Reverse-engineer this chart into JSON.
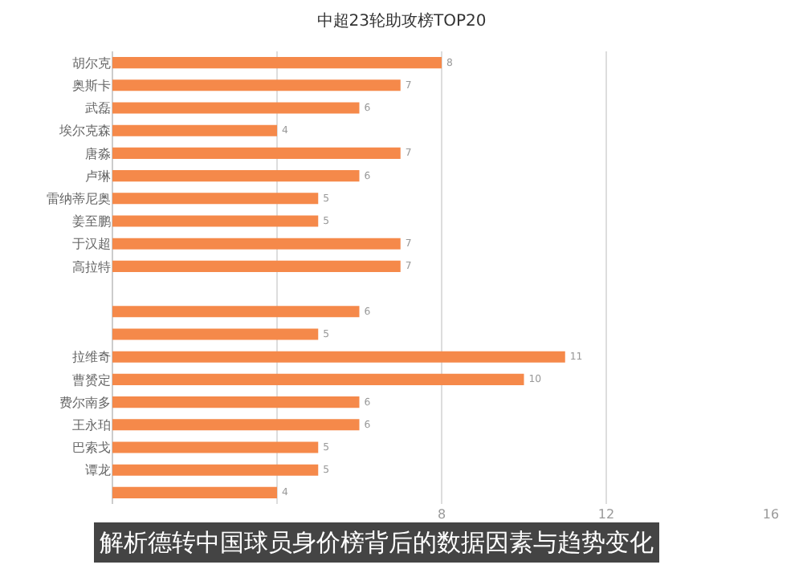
{
  "chart_data": {
    "type": "bar",
    "orientation": "horizontal",
    "title": "中超23轮助攻榜TOP20",
    "annotations": [
      "解析德转中国球员身价榜背后的数据因素与趋势变化"
    ],
    "categories": [
      "胡尔克",
      "奥斯卡",
      "武磊",
      "埃尔克森",
      "唐淼",
      "卢琳",
      "雷纳蒂尼奥",
      "姜至鹏",
      "于汉超",
      "高拉特",
      null,
      null,
      null,
      "拉维奇",
      "曹赟定",
      "费尔南多",
      "王永珀",
      "巴索戈",
      "谭龙",
      null
    ],
    "values": [
      8,
      7,
      6,
      4,
      7,
      6,
      5,
      5,
      7,
      7,
      null,
      6,
      5,
      11,
      10,
      6,
      6,
      5,
      5,
      4
    ],
    "color": "#f5894a",
    "data_labels": true,
    "xlim": [
      0,
      16
    ],
    "xticks": [
      {
        "value": 0,
        "label": null
      },
      {
        "value": 4,
        "label": null
      },
      8,
      12,
      16
    ],
    "grid": true
  }
}
